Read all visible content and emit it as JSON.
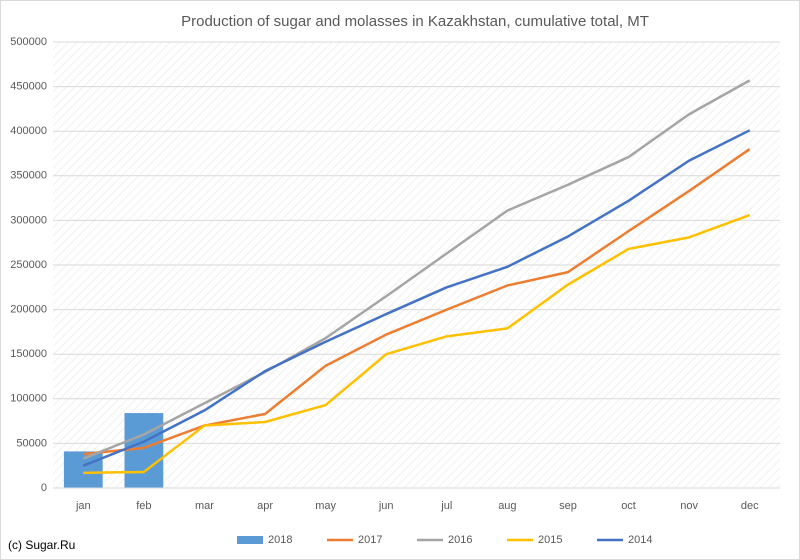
{
  "chart_data": {
    "type": "combo",
    "title": "Production of sugar and molasses in Kazakhstan, cumulative total, MT",
    "source": "(c) Sugar.Ru",
    "categories": [
      "jan",
      "feb",
      "mar",
      "apr",
      "may",
      "jun",
      "jul",
      "aug",
      "sep",
      "oct",
      "nov",
      "dec"
    ],
    "series": [
      {
        "name": "2018",
        "type": "bar",
        "color": "#5b9bd5",
        "values": [
          41000,
          84000,
          null,
          null,
          null,
          null,
          null,
          null,
          null,
          null,
          null,
          null
        ]
      },
      {
        "name": "2017",
        "type": "line",
        "color": "#ed7d31",
        "values": [
          38000,
          45000,
          70000,
          83000,
          137000,
          172000,
          200000,
          227000,
          242000,
          288000,
          333000,
          380000
        ]
      },
      {
        "name": "2016",
        "type": "line",
        "color": "#a5a5a5",
        "values": [
          33000,
          60000,
          95000,
          130000,
          168000,
          215000,
          263000,
          311000,
          340000,
          371000,
          419000,
          457000
        ]
      },
      {
        "name": "2015",
        "type": "line",
        "color": "#ffc000",
        "values": [
          17000,
          18000,
          70000,
          74000,
          93000,
          150000,
          170000,
          179000,
          228000,
          268000,
          281000,
          306000
        ]
      },
      {
        "name": "2014",
        "type": "line",
        "color": "#4472c4",
        "values": [
          25000,
          52000,
          87000,
          131000,
          164000,
          195000,
          225000,
          248000,
          282000,
          322000,
          367000,
          401000
        ]
      }
    ],
    "ylim": [
      0,
      500000
    ],
    "yticks": [
      0,
      50000,
      100000,
      150000,
      200000,
      250000,
      300000,
      350000,
      400000,
      450000,
      500000
    ],
    "grid": true,
    "legend": "bottom"
  }
}
